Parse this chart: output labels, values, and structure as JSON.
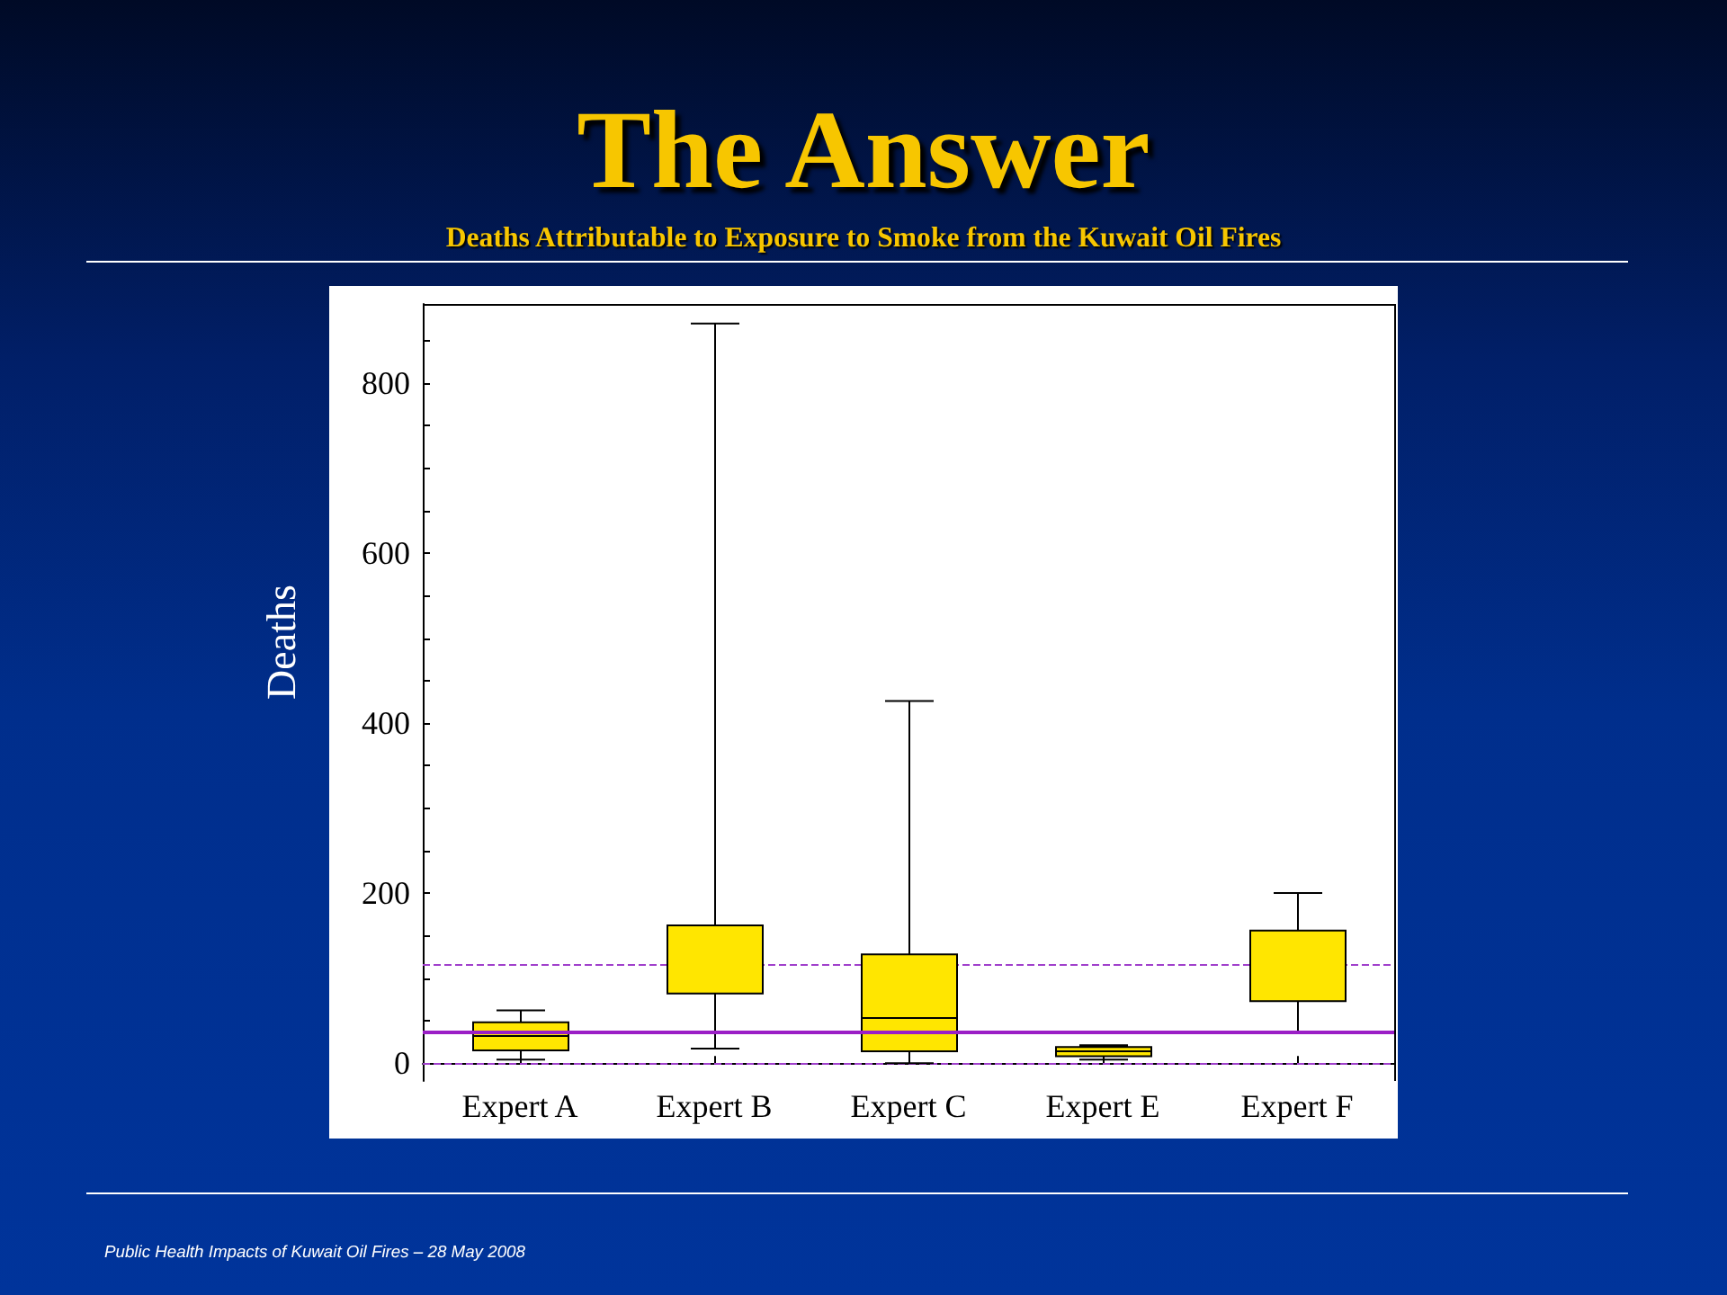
{
  "chart_data": {
    "type": "box",
    "title": "The Answer",
    "subtitle": "Deaths Attributable to Exposure to Smoke from the Kuwait Oil Fires",
    "ylabel": "Deaths",
    "categories": [
      "Expert A",
      "Expert B",
      "Expert C",
      "Expert E",
      "Expert F"
    ],
    "boxes": [
      {
        "low": 4,
        "q1": 15,
        "median": 32,
        "q3": 48,
        "high": 62
      },
      {
        "low": 17,
        "q1": 82,
        "median": null,
        "q3": 162,
        "high": 870
      },
      {
        "low": 0,
        "q1": 14,
        "median": 53,
        "q3": 128,
        "high": 426
      },
      {
        "low": 4,
        "q1": 8,
        "median": 14,
        "q3": 19,
        "high": 21
      },
      {
        "low": 37,
        "q1": 73,
        "median": null,
        "q3": 156,
        "high": 200
      }
    ],
    "color": "#ffe600",
    "ylim": [
      -21,
      893
    ],
    "yticks": [
      0,
      {
        "value": 50,
        "label": null
      },
      {
        "value": 100,
        "label": null
      },
      {
        "value": 150,
        "label": null
      },
      200,
      {
        "value": 250,
        "label": null
      },
      {
        "value": 300,
        "label": null
      },
      {
        "value": 350,
        "label": null
      },
      400,
      {
        "value": 450,
        "label": null
      },
      {
        "value": 500,
        "label": null
      },
      {
        "value": 550,
        "label": null
      },
      600,
      {
        "value": 650,
        "label": null
      },
      {
        "value": 700,
        "label": null
      },
      {
        "value": 750,
        "label": null
      },
      800,
      {
        "value": 850,
        "label": null
      }
    ],
    "ref_lines": [
      {
        "axis": "y",
        "value": 36,
        "color": "#9b1fc6",
        "line_style": "solid"
      },
      {
        "axis": "y",
        "value": 116,
        "color": "#a040cc",
        "line_style": "dashed"
      },
      {
        "axis": "y",
        "value": 0,
        "color": "#a040cc",
        "line_style": "dashed"
      }
    ],
    "grid": false,
    "annotations": [
      "Public Health Impacts of Kuwait Oil Fires – 28 May 2008"
    ]
  }
}
